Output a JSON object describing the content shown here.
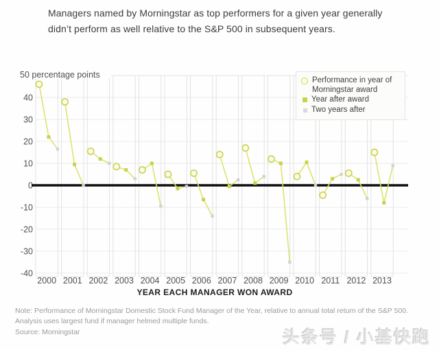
{
  "title": "Managers named by Morningstar as top performers for a given year generally didn’t perform as well relative to the S&P 500 in subsequent years.",
  "y_axis": {
    "top_label": "50 percentage points",
    "ticks": [
      40,
      30,
      20,
      10,
      0,
      -10,
      -20,
      -30,
      -40
    ]
  },
  "x_axis": {
    "title": "YEAR EACH MANAGER WON AWARD"
  },
  "legend": {
    "items": [
      {
        "label": "Performance in year of Morningstar award",
        "marker": "open-circle"
      },
      {
        "label": "Year after award",
        "marker": "filled-square"
      },
      {
        "label": "Two years after",
        "marker": "gray-dot"
      }
    ]
  },
  "note": "Note: Performance of Morningstar Domestic Stock Fund Manager of the Year, relative to annual total return of the S&P 500. Analysis uses largest fund if manager helmed multiple funds.",
  "source": "Source: Morningstar",
  "watermark": "头条号 / 小基快跑",
  "colors": {
    "line": "#dde36e",
    "circle_stroke": "#ccd355",
    "circle_fill": "#fcfcea",
    "filled_marker": "#c8d24a",
    "gray_marker": "#d2d2d2",
    "zero_line": "#0d0d0d",
    "gridline": "#e9e9e9",
    "column_border": "#e1e1e1",
    "tick_text": "#4f4f4f"
  },
  "chart_data": {
    "type": "line",
    "title": "Managers named by Morningstar as top performers for a given year generally didn’t perform as well relative to the S&P 500 in subsequent years.",
    "categories": [
      2000,
      2001,
      2002,
      2003,
      2004,
      2005,
      2006,
      2007,
      2008,
      2009,
      2010,
      2011,
      2012,
      2013
    ],
    "series": [
      {
        "name": "Performance in year of Morningstar award",
        "values": [
          46,
          38,
          15.5,
          8.5,
          7,
          5,
          5.5,
          14,
          17,
          12,
          4,
          -4.5,
          5.5,
          15
        ]
      },
      {
        "name": "Year after award",
        "values": [
          22,
          9.5,
          12,
          7,
          10,
          -1.5,
          -6.5,
          -0.5,
          1,
          10,
          10.5,
          3,
          2.5,
          -8
        ]
      },
      {
        "name": "Two years after",
        "values": [
          16.5,
          0,
          10,
          3,
          -9.5,
          -0.5,
          -14,
          2.5,
          4,
          -35,
          0,
          5,
          -6,
          9
        ]
      }
    ],
    "xlabel": "YEAR EACH MANAGER WON AWARD",
    "ylabel": "percentage points",
    "ylim": [
      -40,
      50
    ],
    "grid": true,
    "legend_position": "top-right",
    "notes": "Points within each award year are connected; years are not connected to each other."
  }
}
